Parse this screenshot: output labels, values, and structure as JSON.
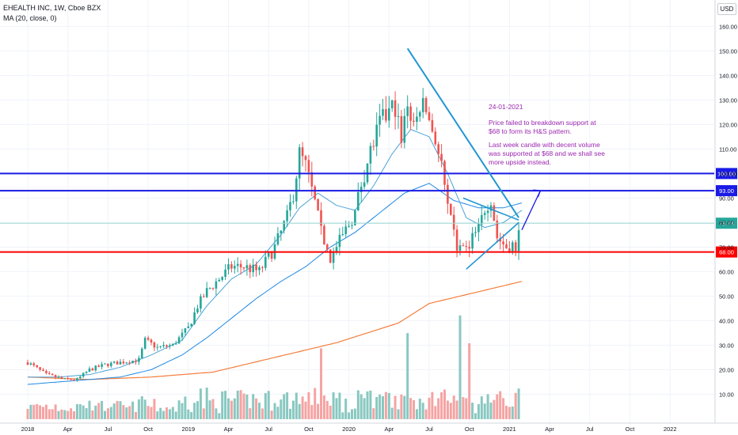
{
  "header": {
    "symbol_line": "EHEALTH INC, 1W, Cboe BZX",
    "indicator_line": "MA (20, close, 0)",
    "currency": "USD"
  },
  "annotation": {
    "date": "24-01-2021",
    "line1": "Price failed to breakdown support at",
    "line2": "$68 to form its H&S pattern.",
    "line3": "Last week candle with decent volume",
    "line4": "was supported at $68 and we shall see",
    "line5": "more upside instead."
  },
  "colors": {
    "up": "#26a69a",
    "down": "#ef5350",
    "vol_up": "#89c8c1",
    "vol_down": "#f5a3a3",
    "ma20": "#4ba3d9",
    "ma50": "#1e88e5",
    "ma200": "#f57c3a",
    "level_blue": "#1a1ae6",
    "level_red": "#ff0000",
    "trend": "#2196d3",
    "current": "#9ed8d0"
  },
  "chart_data": {
    "type": "candlestick",
    "title": "EHEALTH INC, 1W, Cboe BZX",
    "ylim": [
      0,
      165
    ],
    "y_ticks": [
      "10.00",
      "20.00",
      "30.00",
      "40.00",
      "50.00",
      "60.00",
      "70.00",
      "80.00",
      "90.00",
      "100.00",
      "110.00",
      "120.00",
      "130.00",
      "140.00",
      "150.00",
      "160.00"
    ],
    "x_ticks": [
      "2018",
      "Apr",
      "Jul",
      "Oct",
      "2019",
      "Apr",
      "Jul",
      "Oct",
      "2020",
      "Apr",
      "Jul",
      "Oct",
      "2021",
      "Apr",
      "Jul",
      "Oct",
      "2022"
    ],
    "x_tick_positions": [
      0,
      13,
      26,
      39,
      52,
      65,
      78,
      91,
      104,
      117,
      130,
      143,
      156,
      169,
      182,
      195,
      208
    ],
    "price_levels": [
      {
        "label": "100.00",
        "value": 100,
        "color": "#1a1ae6"
      },
      {
        "label": "93.00",
        "value": 93,
        "color": "#1a1ae6"
      },
      {
        "label": "68.00",
        "value": 68,
        "color": "#ff0000"
      }
    ],
    "current_price": {
      "label": "79.74",
      "value": 79.74
    },
    "trendlines": [
      {
        "from": [
          123,
          151
        ],
        "to": [
          159,
          82
        ]
      },
      {
        "from": [
          152,
          88
        ],
        "to": [
          159,
          82
        ]
      },
      {
        "from": [
          142,
          61
        ],
        "to": [
          159,
          80
        ]
      },
      {
        "from": [
          142,
          61
        ],
        "to": [
          159,
          80
        ]
      }
    ],
    "arrow": {
      "from": [
        160,
        77
      ],
      "to": [
        166,
        93
      ]
    },
    "close_anchors": [
      [
        0,
        23
      ],
      [
        6,
        18
      ],
      [
        12,
        16
      ],
      [
        16,
        16
      ],
      [
        20,
        20
      ],
      [
        25,
        22
      ],
      [
        30,
        23
      ],
      [
        36,
        24
      ],
      [
        38,
        32
      ],
      [
        42,
        29
      ],
      [
        47,
        30
      ],
      [
        52,
        37
      ],
      [
        55,
        46
      ],
      [
        58,
        52
      ],
      [
        62,
        57
      ],
      [
        66,
        62
      ],
      [
        70,
        62
      ],
      [
        75,
        60
      ],
      [
        80,
        70
      ],
      [
        84,
        82
      ],
      [
        86,
        92
      ],
      [
        88,
        108
      ],
      [
        90,
        103
      ],
      [
        93,
        88
      ],
      [
        95,
        76
      ],
      [
        98,
        65
      ],
      [
        100,
        70
      ],
      [
        103,
        77
      ],
      [
        106,
        84
      ],
      [
        108,
        96
      ],
      [
        111,
        109
      ],
      [
        114,
        120
      ],
      [
        117,
        125
      ],
      [
        119,
        128
      ],
      [
        121,
        112
      ],
      [
        123,
        130
      ],
      [
        125,
        117
      ],
      [
        127,
        128
      ],
      [
        129,
        126
      ],
      [
        132,
        114
      ],
      [
        134,
        103
      ],
      [
        136,
        85
      ],
      [
        139,
        70
      ],
      [
        141,
        68
      ],
      [
        143,
        72
      ],
      [
        146,
        77
      ],
      [
        148,
        86
      ],
      [
        150,
        90
      ],
      [
        152,
        74
      ],
      [
        155,
        70
      ],
      [
        157,
        71
      ],
      [
        158,
        67
      ],
      [
        159,
        80
      ]
    ],
    "ma20_anchors": [
      [
        0,
        17
      ],
      [
        10,
        17
      ],
      [
        20,
        18
      ],
      [
        30,
        21
      ],
      [
        40,
        26
      ],
      [
        50,
        32
      ],
      [
        58,
        46
      ],
      [
        66,
        57
      ],
      [
        74,
        63
      ],
      [
        82,
        75
      ],
      [
        88,
        86
      ],
      [
        94,
        92
      ],
      [
        100,
        87
      ],
      [
        106,
        85
      ],
      [
        112,
        95
      ],
      [
        118,
        108
      ],
      [
        124,
        118
      ],
      [
        130,
        115
      ],
      [
        136,
        100
      ],
      [
        142,
        82
      ],
      [
        148,
        78
      ],
      [
        154,
        80
      ],
      [
        160,
        85
      ]
    ],
    "ma50_anchors": [
      [
        0,
        14
      ],
      [
        10,
        15
      ],
      [
        20,
        16
      ],
      [
        30,
        17
      ],
      [
        40,
        20
      ],
      [
        50,
        26
      ],
      [
        58,
        33
      ],
      [
        66,
        41
      ],
      [
        74,
        49
      ],
      [
        82,
        56
      ],
      [
        90,
        62
      ],
      [
        98,
        70
      ],
      [
        106,
        76
      ],
      [
        114,
        84
      ],
      [
        122,
        92
      ],
      [
        130,
        96
      ],
      [
        138,
        89
      ],
      [
        146,
        86
      ],
      [
        154,
        86
      ],
      [
        160,
        88
      ]
    ],
    "ma200_anchors": [
      [
        0,
        17
      ],
      [
        20,
        16
      ],
      [
        40,
        17
      ],
      [
        60,
        19
      ],
      [
        80,
        25
      ],
      [
        100,
        31
      ],
      [
        120,
        39
      ],
      [
        130,
        47
      ],
      [
        140,
        50
      ],
      [
        150,
        53
      ],
      [
        160,
        56
      ]
    ],
    "volume_ylim": [
      0,
      50
    ],
    "volume_peaks": [
      {
        "week": 123,
        "value": 34
      },
      {
        "week": 140,
        "value": 41
      },
      {
        "week": 143,
        "value": 30
      },
      {
        "week": 95,
        "value": 28
      }
    ]
  }
}
